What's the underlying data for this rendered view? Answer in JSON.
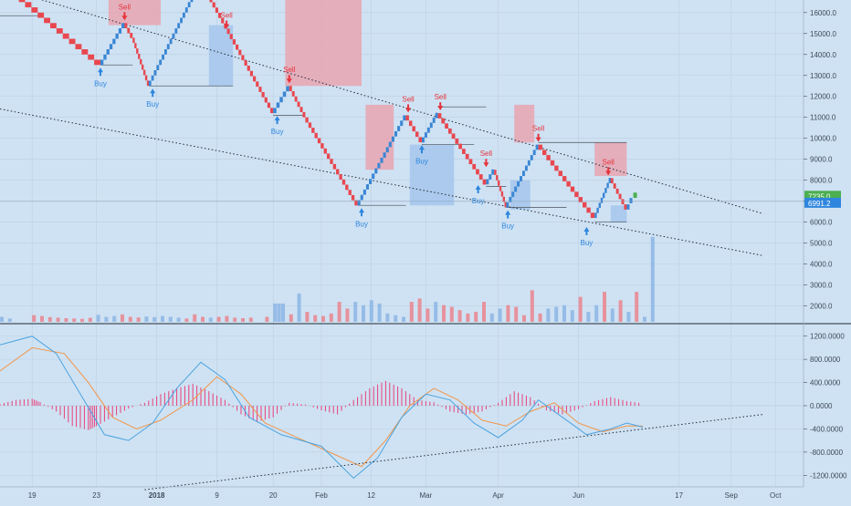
{
  "colors": {
    "background": "#cfe2f3",
    "brick_up": "#3a86d4",
    "brick_down": "#e8474f",
    "zone_red": "#e8a4b0",
    "zone_blue": "#a9c8ec",
    "grid": "#bcd0e3",
    "axis_text": "#3d4a5a",
    "buy": "#2e86de",
    "sell": "#e5333b",
    "last_price_green": "#4caf50",
    "last_price_blue": "#2e86de",
    "macd_line": "#4aa3df",
    "signal_line": "#f0964a",
    "hist_pos": "#e8407a",
    "hist_neg": "#e8407a"
  },
  "chart_data": [
    {
      "type": "renko",
      "ylim": [
        1200,
        16600
      ],
      "y_ticks": [
        "16000.0",
        "15000.0",
        "14000.0",
        "13000.0",
        "12000.0",
        "11000.0",
        "10000.0",
        "9000.0",
        "8000.0",
        "7000.0",
        "6000.0",
        "5000.0",
        "4000.0",
        "3000.0",
        "2000.0"
      ],
      "y_tick_values": [
        16000,
        15000,
        14000,
        13000,
        12000,
        11000,
        10000,
        9000,
        8000,
        7000,
        6000,
        5000,
        4000,
        3000,
        2000
      ],
      "x_ticks": [
        "19",
        "23",
        "2018",
        "9",
        "20",
        "Feb",
        "12",
        "Mar",
        "Apr",
        "Jun",
        "17",
        "Sep",
        "Oct"
      ],
      "x_tick_positions": [
        0.04,
        0.12,
        0.195,
        0.27,
        0.34,
        0.4,
        0.462,
        0.53,
        0.62,
        0.72,
        0.845,
        0.91,
        0.965
      ],
      "price_path": [
        [
          0.0,
          17500
        ],
        [
          0.125,
          13500
        ],
        [
          0.155,
          15500
        ],
        [
          0.165,
          14800
        ],
        [
          0.185,
          12500
        ],
        [
          0.25,
          17500
        ],
        [
          0.34,
          11200
        ],
        [
          0.36,
          12500
        ],
        [
          0.38,
          11000
        ],
        [
          0.445,
          6800
        ],
        [
          0.505,
          11100
        ],
        [
          0.525,
          9800
        ],
        [
          0.545,
          11200
        ],
        [
          0.605,
          7800
        ],
        [
          0.615,
          8500
        ],
        [
          0.63,
          6700
        ],
        [
          0.67,
          9700
        ],
        [
          0.74,
          6200
        ],
        [
          0.76,
          8100
        ],
        [
          0.78,
          6600
        ],
        [
          0.787,
          7200
        ]
      ],
      "brick_size": 250,
      "red_zones": [
        {
          "x0": 0.135,
          "x1": 0.2,
          "low": 15400,
          "high": 17500
        },
        {
          "x0": 0.355,
          "x1": 0.45,
          "low": 12500,
          "high": 17500
        },
        {
          "x0": 0.455,
          "x1": 0.49,
          "low": 8500,
          "high": 11600
        },
        {
          "x0": 0.64,
          "x1": 0.665,
          "low": 9800,
          "high": 11600
        },
        {
          "x0": 0.74,
          "x1": 0.78,
          "low": 8200,
          "high": 9800
        }
      ],
      "blue_zones": [
        {
          "x0": 0.26,
          "x1": 0.29,
          "low": 12500,
          "high": 15400
        },
        {
          "x0": 0.51,
          "x1": 0.565,
          "low": 6800,
          "high": 9700
        },
        {
          "x0": 0.635,
          "x1": 0.66,
          "low": 6600,
          "high": 8000
        },
        {
          "x0": 0.76,
          "x1": 0.78,
          "low": 6000,
          "high": 6800
        }
      ],
      "support_lines": [
        {
          "x0": 0.125,
          "x1": 0.165,
          "y": 13500
        },
        {
          "x0": 0.185,
          "x1": 0.29,
          "y": 12500
        },
        {
          "x0": 0.34,
          "x1": 0.38,
          "y": 11100
        },
        {
          "x0": 0.445,
          "x1": 0.505,
          "y": 6800
        },
        {
          "x0": 0.525,
          "x1": 0.59,
          "y": 9700
        },
        {
          "x0": 0.545,
          "x1": 0.605,
          "y": 11500
        },
        {
          "x0": 0.605,
          "x1": 0.63,
          "y": 7700
        },
        {
          "x0": 0.63,
          "x1": 0.705,
          "y": 6700
        },
        {
          "x0": 0.67,
          "x1": 0.78,
          "y": 9800
        },
        {
          "x0": 0.74,
          "x1": 0.78,
          "y": 6000
        },
        {
          "x0": 0.0,
          "x1": 0.05,
          "y": 15850
        }
      ],
      "trendlines": [
        {
          "x0": 0.0,
          "y0": 17200,
          "x1": 0.95,
          "y1": 6400
        },
        {
          "x0": 0.0,
          "y0": 11400,
          "x1": 0.95,
          "y1": 4400
        }
      ],
      "signals": [
        {
          "type": "Buy",
          "x": 0.125,
          "y": 13500
        },
        {
          "type": "Sell",
          "x": 0.155,
          "y": 15500
        },
        {
          "type": "Buy",
          "x": 0.19,
          "y": 12500
        },
        {
          "type": "Sell",
          "x": 0.282,
          "y": 15100
        },
        {
          "type": "Buy",
          "x": 0.345,
          "y": 11200
        },
        {
          "type": "Sell",
          "x": 0.36,
          "y": 12500
        },
        {
          "type": "Buy",
          "x": 0.45,
          "y": 6800
        },
        {
          "type": "Sell",
          "x": 0.508,
          "y": 11100
        },
        {
          "type": "Buy",
          "x": 0.525,
          "y": 9800
        },
        {
          "type": "Sell",
          "x": 0.548,
          "y": 11200
        },
        {
          "type": "Buy",
          "x": 0.595,
          "y": 7900
        },
        {
          "type": "Sell",
          "x": 0.605,
          "y": 8500
        },
        {
          "type": "Buy",
          "x": 0.632,
          "y": 6700
        },
        {
          "type": "Sell",
          "x": 0.67,
          "y": 9700
        },
        {
          "type": "Buy",
          "x": 0.73,
          "y": 5900
        },
        {
          "type": "Sell",
          "x": 0.757,
          "y": 8100
        }
      ],
      "last_price_green": "7235.0",
      "last_price_green_value": 7235,
      "last_price_blue": "6991.2",
      "last_price_blue_value": 6991.2,
      "volume_max": 5200,
      "volume_bars": [
        [
          0.0,
          300,
          "u"
        ],
        [
          0.01,
          200,
          "u"
        ],
        [
          0.04,
          400,
          "d"
        ],
        [
          0.05,
          350,
          "d"
        ],
        [
          0.06,
          280,
          "d"
        ],
        [
          0.07,
          250,
          "d"
        ],
        [
          0.08,
          220,
          "d"
        ],
        [
          0.09,
          200,
          "d"
        ],
        [
          0.1,
          180,
          "d"
        ],
        [
          0.11,
          240,
          "d"
        ],
        [
          0.12,
          420,
          "u"
        ],
        [
          0.13,
          300,
          "u"
        ],
        [
          0.14,
          350,
          "u"
        ],
        [
          0.15,
          450,
          "d"
        ],
        [
          0.16,
          300,
          "d"
        ],
        [
          0.17,
          260,
          "d"
        ],
        [
          0.18,
          320,
          "u"
        ],
        [
          0.19,
          280,
          "u"
        ],
        [
          0.2,
          350,
          "u"
        ],
        [
          0.21,
          300,
          "u"
        ],
        [
          0.22,
          250,
          "u"
        ],
        [
          0.23,
          200,
          "d"
        ],
        [
          0.24,
          450,
          "d"
        ],
        [
          0.25,
          300,
          "d"
        ],
        [
          0.26,
          250,
          "u"
        ],
        [
          0.27,
          300,
          "d"
        ],
        [
          0.28,
          350,
          "d"
        ],
        [
          0.29,
          250,
          "d"
        ],
        [
          0.3,
          220,
          "d"
        ],
        [
          0.31,
          250,
          "d"
        ],
        [
          0.33,
          300,
          "d"
        ],
        [
          0.34,
          1100,
          "u"
        ],
        [
          0.345,
          1100,
          "u"
        ],
        [
          0.35,
          1100,
          "u"
        ],
        [
          0.36,
          450,
          "d"
        ],
        [
          0.37,
          1700,
          "u"
        ],
        [
          0.38,
          600,
          "d"
        ],
        [
          0.39,
          400,
          "d"
        ],
        [
          0.4,
          350,
          "d"
        ],
        [
          0.41,
          500,
          "d"
        ],
        [
          0.42,
          1200,
          "d"
        ],
        [
          0.43,
          800,
          "d"
        ],
        [
          0.44,
          1200,
          "u"
        ],
        [
          0.45,
          1000,
          "u"
        ],
        [
          0.46,
          1300,
          "u"
        ],
        [
          0.47,
          1100,
          "u"
        ],
        [
          0.48,
          500,
          "u"
        ],
        [
          0.49,
          400,
          "u"
        ],
        [
          0.5,
          300,
          "u"
        ],
        [
          0.51,
          1200,
          "d"
        ],
        [
          0.52,
          1400,
          "d"
        ],
        [
          0.53,
          800,
          "d"
        ],
        [
          0.54,
          1200,
          "u"
        ],
        [
          0.55,
          1000,
          "d"
        ],
        [
          0.56,
          900,
          "d"
        ],
        [
          0.57,
          700,
          "d"
        ],
        [
          0.58,
          500,
          "d"
        ],
        [
          0.59,
          600,
          "d"
        ],
        [
          0.6,
          1200,
          "d"
        ],
        [
          0.61,
          500,
          "u"
        ],
        [
          0.62,
          800,
          "u"
        ],
        [
          0.63,
          1000,
          "d"
        ],
        [
          0.64,
          900,
          "d"
        ],
        [
          0.65,
          400,
          "d"
        ],
        [
          0.66,
          1900,
          "d"
        ],
        [
          0.67,
          500,
          "d"
        ],
        [
          0.68,
          800,
          "u"
        ],
        [
          0.69,
          900,
          "u"
        ],
        [
          0.7,
          1000,
          "u"
        ],
        [
          0.71,
          700,
          "u"
        ],
        [
          0.72,
          1500,
          "d"
        ],
        [
          0.73,
          600,
          "u"
        ],
        [
          0.74,
          1000,
          "u"
        ],
        [
          0.75,
          1800,
          "d"
        ],
        [
          0.76,
          800,
          "u"
        ],
        [
          0.77,
          1300,
          "d"
        ],
        [
          0.78,
          600,
          "u"
        ],
        [
          0.79,
          1800,
          "d"
        ],
        [
          0.8,
          300,
          "u"
        ],
        [
          0.81,
          5100,
          "u"
        ]
      ]
    },
    {
      "type": "macd",
      "ylim": [
        -1400,
        1400
      ],
      "y_ticks": [
        "1200.0000",
        "800.0000",
        "400.0000",
        "0.0000",
        "-400.0000",
        "-800.0000",
        "-1200.0000"
      ],
      "y_tick_values": [
        1200,
        800,
        400,
        0,
        -400,
        -800,
        -1200
      ],
      "macd_line": [
        [
          0.0,
          1050
        ],
        [
          0.04,
          1200
        ],
        [
          0.07,
          900
        ],
        [
          0.1,
          200
        ],
        [
          0.13,
          -500
        ],
        [
          0.16,
          -600
        ],
        [
          0.19,
          -300
        ],
        [
          0.22,
          300
        ],
        [
          0.25,
          750
        ],
        [
          0.28,
          450
        ],
        [
          0.31,
          -200
        ],
        [
          0.35,
          -500
        ],
        [
          0.4,
          -700
        ],
        [
          0.44,
          -1250
        ],
        [
          0.47,
          -900
        ],
        [
          0.5,
          -200
        ],
        [
          0.53,
          200
        ],
        [
          0.56,
          100
        ],
        [
          0.59,
          -300
        ],
        [
          0.62,
          -550
        ],
        [
          0.65,
          -250
        ],
        [
          0.67,
          100
        ],
        [
          0.7,
          -200
        ],
        [
          0.73,
          -500
        ],
        [
          0.76,
          -400
        ],
        [
          0.78,
          -300
        ],
        [
          0.8,
          -370
        ]
      ],
      "signal_line": [
        [
          0.0,
          600
        ],
        [
          0.04,
          1000
        ],
        [
          0.08,
          900
        ],
        [
          0.11,
          400
        ],
        [
          0.14,
          -200
        ],
        [
          0.17,
          -400
        ],
        [
          0.2,
          -250
        ],
        [
          0.24,
          100
        ],
        [
          0.27,
          500
        ],
        [
          0.3,
          200
        ],
        [
          0.33,
          -300
        ],
        [
          0.37,
          -550
        ],
        [
          0.41,
          -800
        ],
        [
          0.45,
          -1050
        ],
        [
          0.48,
          -600
        ],
        [
          0.51,
          0
        ],
        [
          0.54,
          300
        ],
        [
          0.57,
          100
        ],
        [
          0.6,
          -250
        ],
        [
          0.63,
          -350
        ],
        [
          0.66,
          -100
        ],
        [
          0.69,
          50
        ],
        [
          0.72,
          -300
        ],
        [
          0.75,
          -450
        ],
        [
          0.78,
          -350
        ],
        [
          0.8,
          -350
        ]
      ],
      "histogram": [
        [
          0.0,
          30
        ],
        [
          0.02,
          100
        ],
        [
          0.04,
          120
        ],
        [
          0.05,
          60
        ],
        [
          0.07,
          -100
        ],
        [
          0.09,
          -350
        ],
        [
          0.11,
          -420
        ],
        [
          0.12,
          -350
        ],
        [
          0.14,
          -200
        ],
        [
          0.16,
          -50
        ],
        [
          0.18,
          50
        ],
        [
          0.2,
          200
        ],
        [
          0.22,
          300
        ],
        [
          0.24,
          380
        ],
        [
          0.26,
          250
        ],
        [
          0.28,
          100
        ],
        [
          0.3,
          -150
        ],
        [
          0.32,
          -280
        ],
        [
          0.34,
          -200
        ],
        [
          0.36,
          50
        ],
        [
          0.38,
          20
        ],
        [
          0.4,
          -80
        ],
        [
          0.42,
          -150
        ],
        [
          0.44,
          100
        ],
        [
          0.46,
          300
        ],
        [
          0.48,
          430
        ],
        [
          0.5,
          300
        ],
        [
          0.52,
          100
        ],
        [
          0.54,
          60
        ],
        [
          0.56,
          -100
        ],
        [
          0.58,
          -150
        ],
        [
          0.6,
          -100
        ],
        [
          0.62,
          50
        ],
        [
          0.64,
          250
        ],
        [
          0.66,
          150
        ],
        [
          0.68,
          -80
        ],
        [
          0.7,
          -150
        ],
        [
          0.72,
          -60
        ],
        [
          0.74,
          80
        ],
        [
          0.76,
          150
        ],
        [
          0.78,
          80
        ],
        [
          0.8,
          40
        ]
      ],
      "trendline": {
        "x0": 0.18,
        "y0": -1450,
        "x1": 0.95,
        "y1": -150
      }
    }
  ]
}
